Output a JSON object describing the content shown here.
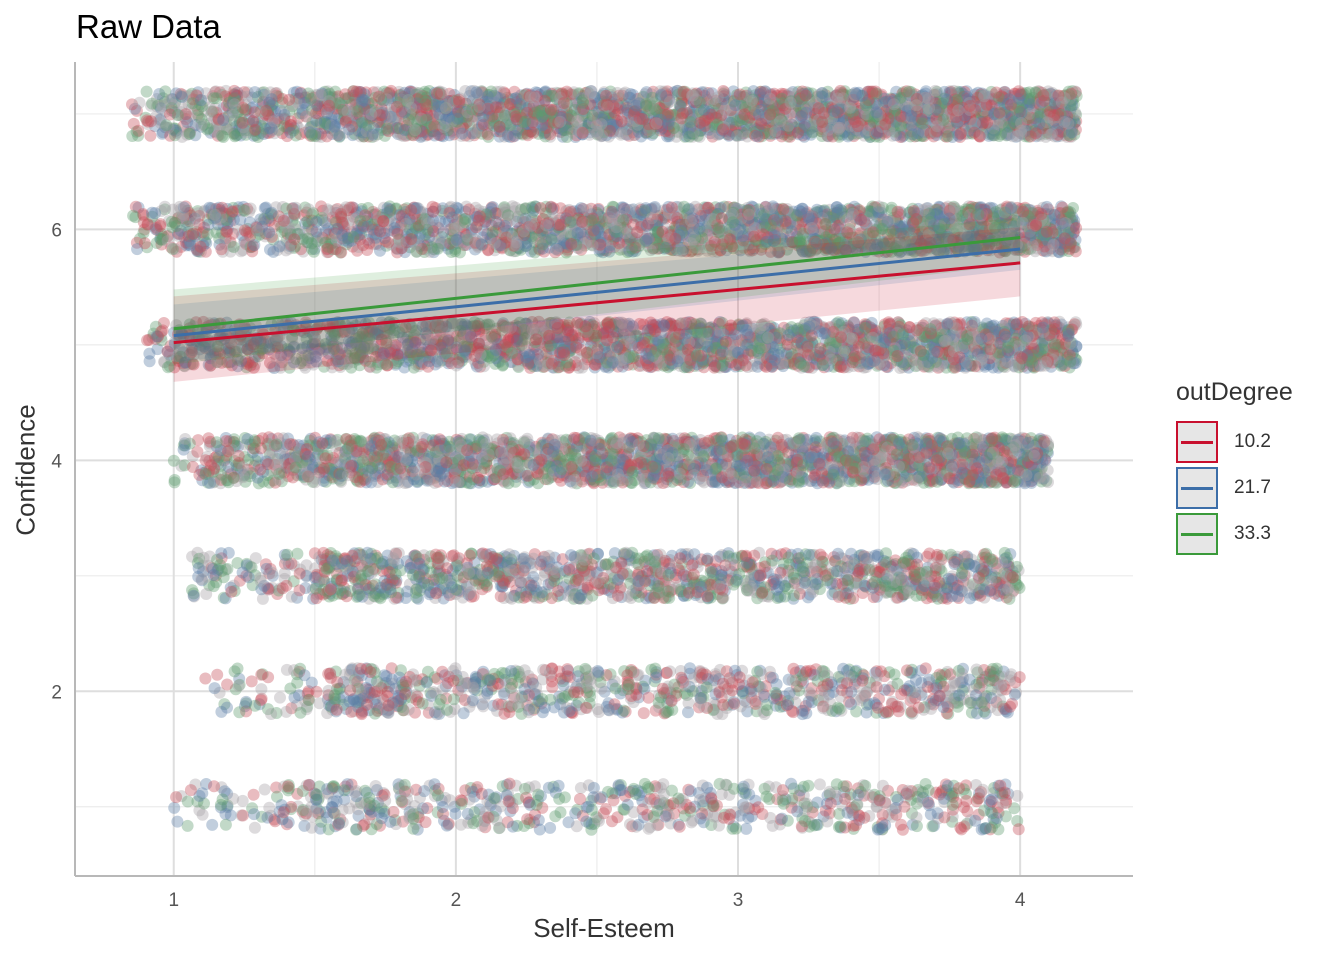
{
  "chart_data": {
    "type": "scatter",
    "title": "Raw Data",
    "xlabel": "Self-Esteem",
    "ylabel": "Confidence",
    "xlim": [
      0.65,
      4.4
    ],
    "ylim": [
      0.4,
      7.45
    ],
    "x_ticks": [
      1,
      2,
      3,
      4
    ],
    "y_ticks": [
      2,
      4,
      6
    ],
    "grid": true,
    "legend": {
      "title": "outDegree",
      "position": "right",
      "entries": [
        "10.2",
        "21.7",
        "33.3"
      ]
    },
    "colors": {
      "10.2": "#c8102e",
      "21.7": "#3c6ea8",
      "33.3": "#3a9a3a"
    },
    "point_colors": [
      "#c44e59",
      "#5b7fa6",
      "#5e9a6e",
      "#a5a0a5"
    ],
    "confidence_levels": [
      1,
      2,
      3,
      4,
      5,
      6,
      7
    ],
    "x_range_by_level": {
      "1": [
        1.0,
        4.0
      ],
      "2": [
        1.1,
        4.0
      ],
      "3": [
        1.05,
        4.0
      ],
      "4": [
        1.0,
        4.1
      ],
      "5": [
        0.9,
        4.2
      ],
      "6": [
        0.85,
        4.2
      ],
      "7": [
        0.85,
        4.2
      ]
    },
    "series": [
      {
        "name": "10.2",
        "x": [
          1,
          4
        ],
        "y": [
          5.02,
          5.71
        ],
        "ci_lower": [
          4.68,
          5.42
        ],
        "ci_upper": [
          5.42,
          6.02
        ]
      },
      {
        "name": "21.7",
        "x": [
          1,
          4
        ],
        "y": [
          5.08,
          5.83
        ],
        "ci_lower": [
          4.85,
          5.65
        ],
        "ci_upper": [
          5.35,
          6.0
        ]
      },
      {
        "name": "33.3",
        "x": [
          1,
          4
        ],
        "y": [
          5.14,
          5.93
        ],
        "ci_lower": [
          4.83,
          5.7
        ],
        "ci_upper": [
          5.48,
          6.1
        ]
      }
    ]
  }
}
